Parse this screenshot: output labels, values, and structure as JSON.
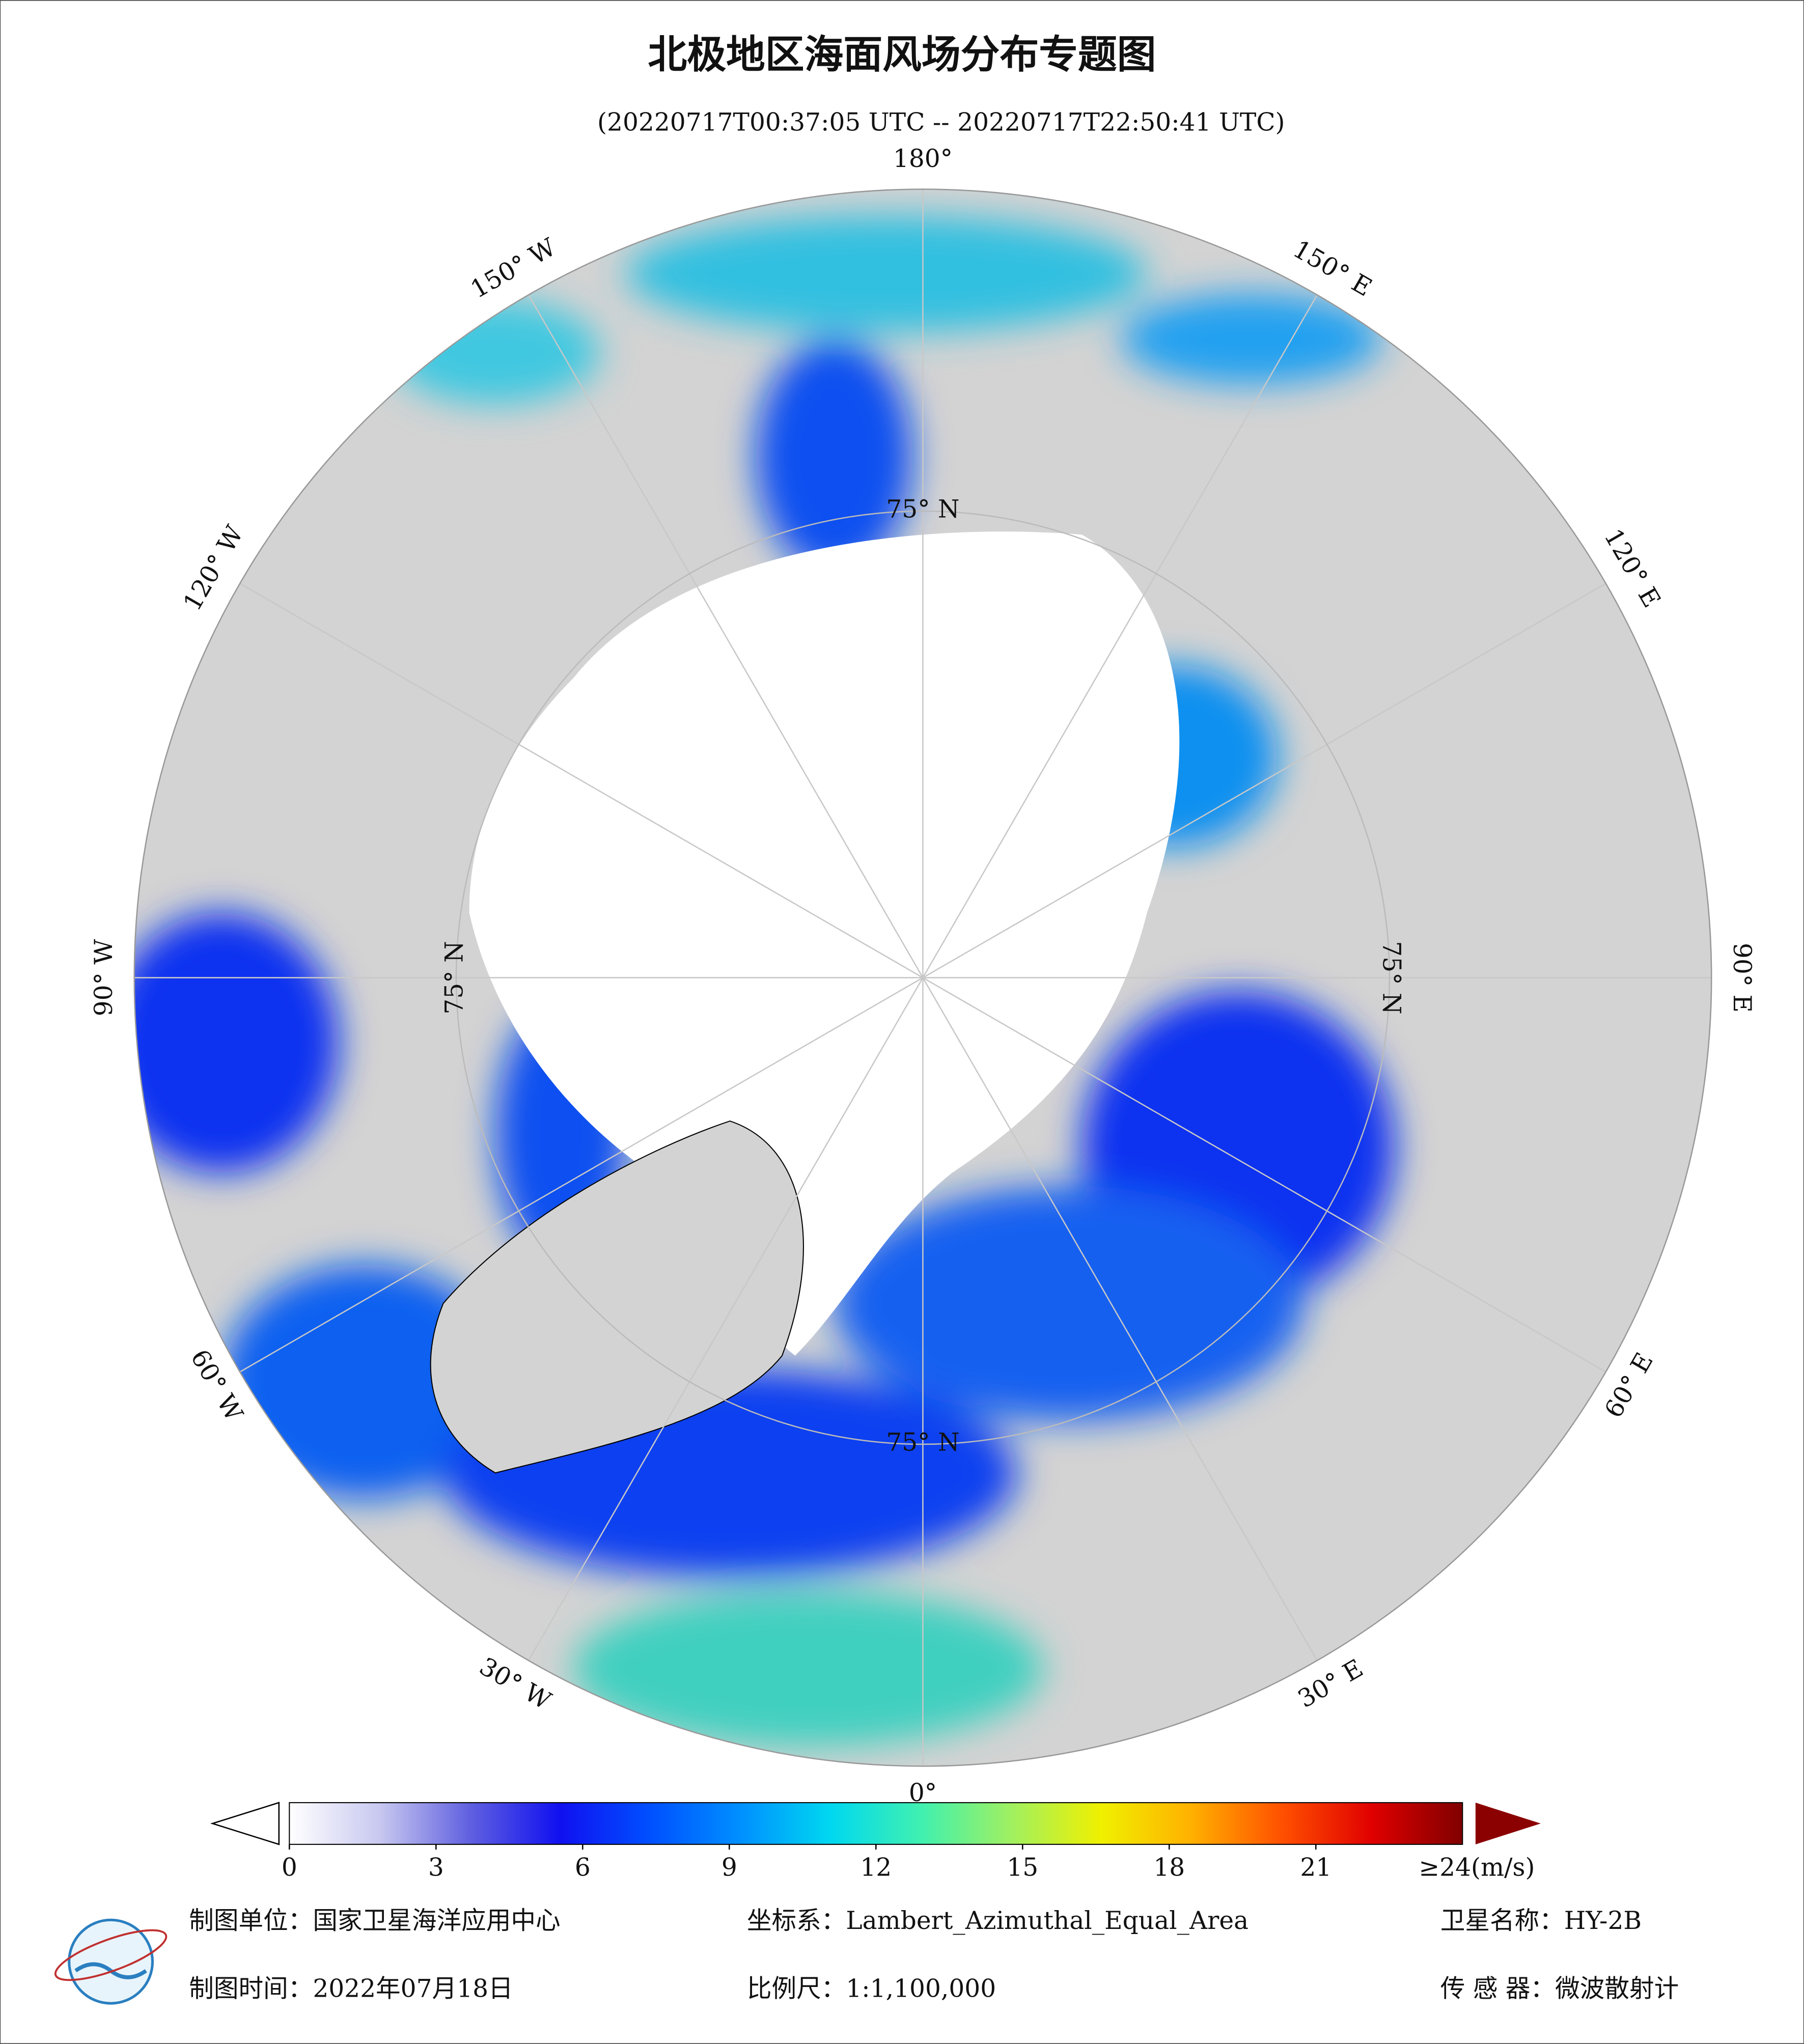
{
  "header": {
    "title": "北极地区海面风场分布专题图",
    "subtitle": "(20220717T00:37:05 UTC -- 20220717T22:50:41 UTC)"
  },
  "map": {
    "longitude_labels": [
      "180°",
      "150° W",
      "120° W",
      "90° W",
      "60° W",
      "30° W",
      "0°",
      "30° E",
      "60° E",
      "90° E",
      "120° E",
      "150° E"
    ],
    "latitude_label": "75° N"
  },
  "colorbar": {
    "range": [
      0,
      24
    ],
    "ticks": [
      0,
      3,
      6,
      9,
      12,
      15,
      18,
      21
    ],
    "max_label": "≥24(m/s)",
    "colors": [
      "#ffffff",
      "#c8c8f0",
      "#6060e0",
      "#1010f0",
      "#0050ff",
      "#0090ff",
      "#00d8f0",
      "#40f0b0",
      "#a0f060",
      "#f0f000",
      "#ffb000",
      "#ff5000",
      "#e00000",
      "#800000"
    ]
  },
  "footer": {
    "unit": "制图单位：国家卫星海洋应用中心",
    "projection": "坐标系：Lambert_Azimuthal_Equal_Area",
    "satellite": "卫星名称：HY-2B",
    "date": "制图时间：2022年07月18日",
    "scale": "比例尺：1:1,100,000",
    "sensor": "传 感 器：微波散射计"
  }
}
